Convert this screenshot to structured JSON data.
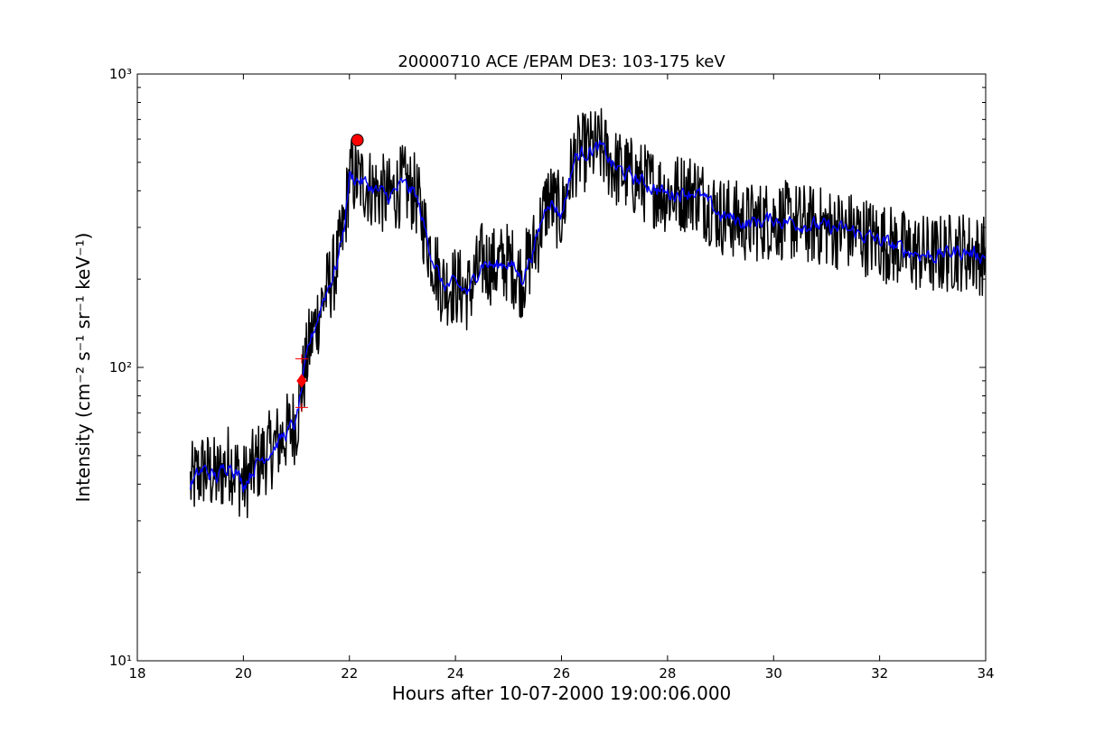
{
  "chart_data": {
    "type": "line",
    "title": "20000710 ACE /EPAM DE3: 103-175 keV",
    "xlabel": "Hours after 10-07-2000 19:00:06.000",
    "ylabel": "Intensity (cm⁻² s⁻¹ sr⁻¹ keV⁻¹)",
    "xlim": [
      18,
      34
    ],
    "ylim": [
      10,
      1000
    ],
    "yscale": "log",
    "grid": false,
    "x_ticks": [
      18,
      20,
      22,
      24,
      26,
      28,
      30,
      32,
      34
    ],
    "x_tick_labels": [
      "18",
      "20",
      "22",
      "24",
      "26",
      "28",
      "30",
      "32",
      "34"
    ],
    "y_ticks": [
      10,
      100,
      1000
    ],
    "y_tick_labels": [
      "10¹",
      "10²",
      "10³"
    ],
    "series": [
      {
        "style": "raw",
        "color": "#000000",
        "x": [
          19.0,
          19.25,
          19.5,
          19.75,
          20.0,
          20.25,
          20.5,
          20.75,
          21.0,
          21.1,
          21.25,
          21.5,
          21.75,
          21.9,
          22.0,
          22.25,
          22.5,
          22.75,
          23.0,
          23.25,
          23.5,
          23.75,
          24.0,
          24.25,
          24.5,
          24.75,
          25.0,
          25.25,
          25.5,
          25.75,
          26.0,
          26.25,
          26.5,
          26.75,
          27.0,
          27.5,
          28.0,
          28.5,
          29.0,
          29.5,
          30.0,
          30.5,
          31.0,
          31.5,
          32.0,
          32.5,
          33.0,
          33.5,
          34.0
        ],
        "y": [
          40,
          45,
          42,
          48,
          40,
          47,
          52,
          58,
          65,
          85,
          120,
          170,
          220,
          300,
          450,
          430,
          400,
          380,
          420,
          390,
          260,
          190,
          190,
          180,
          230,
          220,
          230,
          200,
          260,
          380,
          330,
          520,
          550,
          560,
          480,
          430,
          390,
          400,
          330,
          310,
          320,
          310,
          300,
          290,
          270,
          250,
          240,
          250,
          240
        ],
        "noise": 0.32
      },
      {
        "style": "smoothed",
        "color": "#0000ff",
        "x": [
          19.0,
          19.25,
          19.5,
          19.75,
          20.0,
          20.25,
          20.5,
          20.75,
          21.0,
          21.1,
          21.25,
          21.5,
          21.75,
          21.9,
          22.0,
          22.25,
          22.5,
          22.75,
          23.0,
          23.25,
          23.5,
          23.75,
          24.0,
          24.25,
          24.5,
          24.75,
          25.0,
          25.25,
          25.5,
          25.75,
          26.0,
          26.25,
          26.5,
          26.75,
          27.0,
          27.5,
          28.0,
          28.5,
          29.0,
          29.5,
          30.0,
          30.5,
          31.0,
          31.5,
          32.0,
          32.5,
          33.0,
          33.5,
          34.0
        ],
        "y": [
          40,
          45,
          42,
          48,
          40,
          47,
          52,
          58,
          65,
          85,
          120,
          170,
          220,
          300,
          450,
          430,
          400,
          380,
          420,
          390,
          260,
          190,
          190,
          180,
          230,
          220,
          230,
          200,
          260,
          380,
          330,
          520,
          550,
          560,
          480,
          430,
          390,
          400,
          330,
          310,
          320,
          310,
          300,
          290,
          270,
          250,
          240,
          250,
          240
        ],
        "noise": 0.12
      }
    ],
    "markers": [
      {
        "kind": "peak-circle",
        "x": 22.15,
        "y": 595,
        "color": "#ff0000"
      },
      {
        "kind": "onset-diamond",
        "x": 21.1,
        "y": 90,
        "color": "#ff0000"
      },
      {
        "kind": "onset-cross-upper",
        "x": 21.1,
        "y": 107,
        "color": "#ff0000"
      },
      {
        "kind": "onset-cross-lower",
        "x": 21.1,
        "y": 73,
        "color": "#ff0000"
      }
    ]
  }
}
